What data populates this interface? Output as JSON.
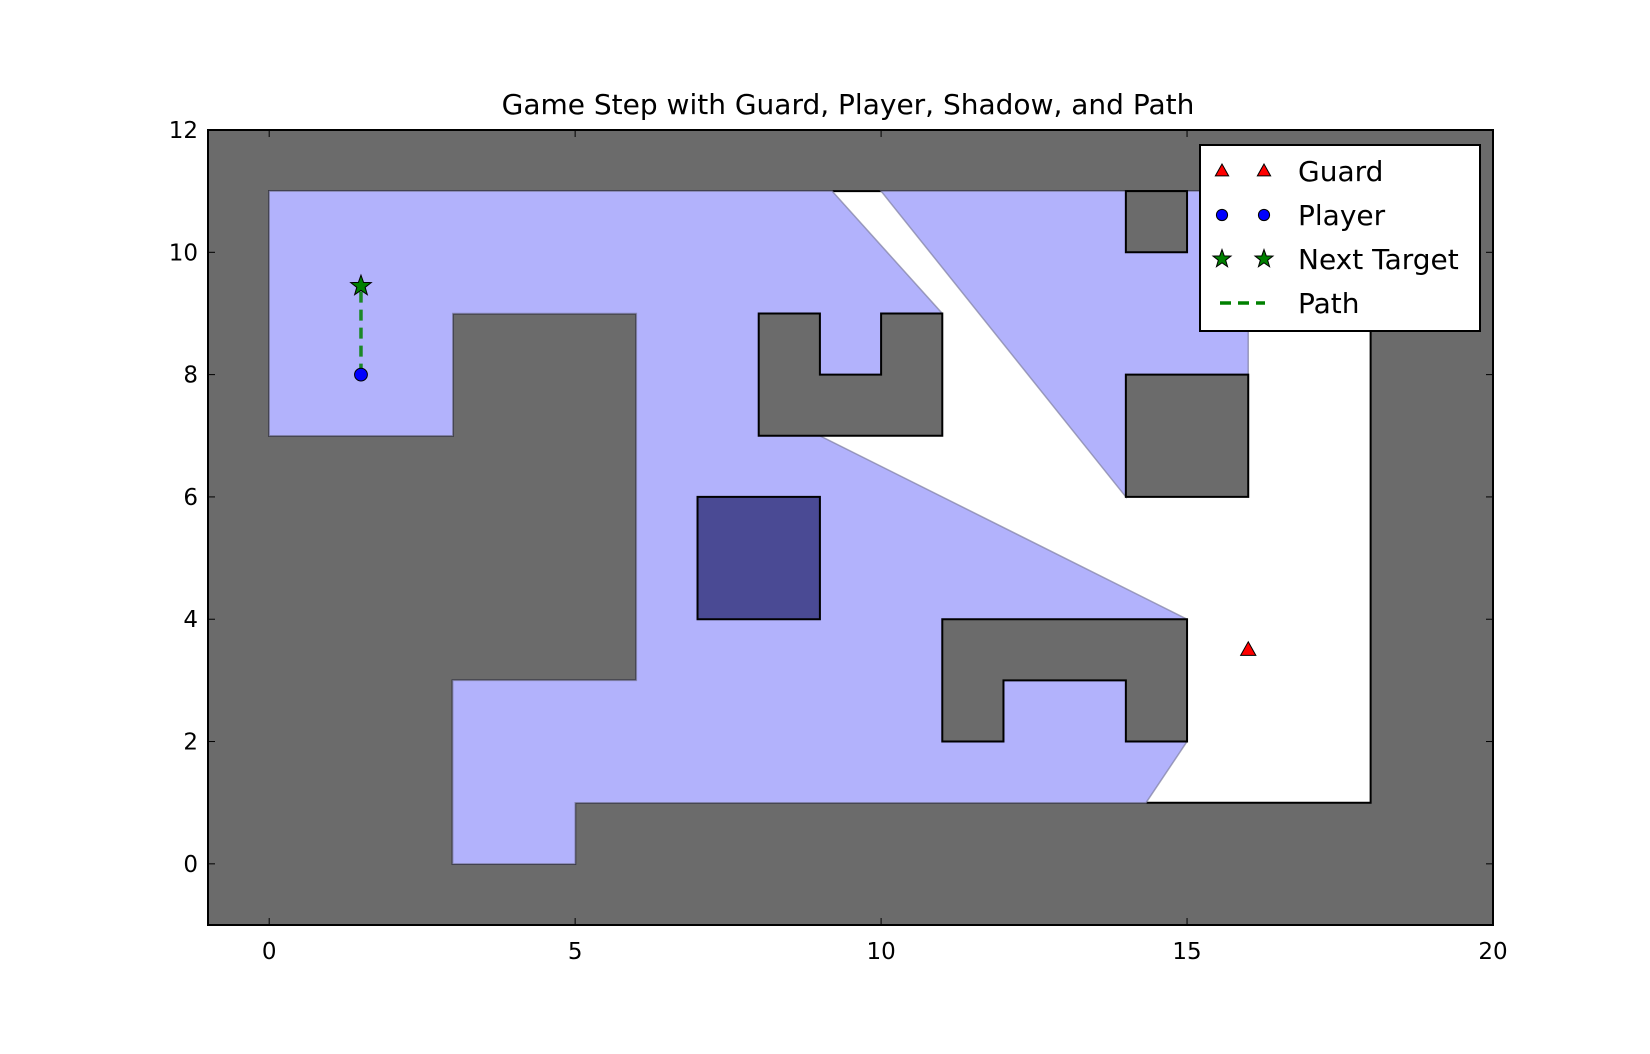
{
  "chart_data": {
    "type": "scatter",
    "title": "Game Step with Guard, Player, Shadow, and Path",
    "xlabel": "",
    "ylabel": "",
    "xlim": [
      -1,
      20
    ],
    "ylim": [
      -1,
      12
    ],
    "xticks": [
      0,
      5,
      10,
      15,
      20
    ],
    "yticks": [
      0,
      2,
      4,
      6,
      8,
      10,
      12
    ],
    "grid": false,
    "legend_position": "top-right",
    "colors": {
      "wall": "#6b6b6b",
      "shadow": "#b2b2fc",
      "highlight_box": "#4a4a94",
      "guard": "#ff0000",
      "player": "#0000ff",
      "target": "#008000",
      "path": "#008000",
      "floor": "#ffffff"
    },
    "obstacles": [
      {
        "name": "outer-wall",
        "points": [
          [
            -1,
            -1
          ],
          [
            20,
            -1
          ],
          [
            20,
            12
          ],
          [
            -1,
            12
          ]
        ]
      },
      {
        "name": "top-notch",
        "points": [
          [
            14,
            11
          ],
          [
            15,
            11
          ],
          [
            15,
            10
          ],
          [
            14,
            10
          ]
        ]
      },
      {
        "name": "c-shape-top",
        "points": [
          [
            8,
            9
          ],
          [
            9,
            9
          ],
          [
            9,
            8
          ],
          [
            10,
            8
          ],
          [
            10,
            9
          ],
          [
            11,
            9
          ],
          [
            11,
            7
          ],
          [
            8,
            7
          ]
        ]
      },
      {
        "name": "block-middle-right",
        "points": [
          [
            14,
            8
          ],
          [
            16,
            8
          ],
          [
            16,
            6
          ],
          [
            14,
            6
          ]
        ]
      },
      {
        "name": "u-shape-bottom",
        "points": [
          [
            11,
            4
          ],
          [
            15,
            4
          ],
          [
            15,
            2
          ],
          [
            14,
            2
          ],
          [
            14,
            3
          ],
          [
            12,
            3
          ],
          [
            12,
            2
          ],
          [
            11,
            2
          ]
        ]
      }
    ],
    "walkable_area": [
      [
        0,
        11
      ],
      [
        18,
        11
      ],
      [
        18,
        1
      ],
      [
        5,
        1
      ],
      [
        5,
        0
      ],
      [
        3,
        0
      ],
      [
        3,
        3
      ],
      [
        6,
        3
      ],
      [
        6,
        9
      ],
      [
        3,
        9
      ],
      [
        3,
        7
      ],
      [
        0,
        7
      ]
    ],
    "shadow_regions": [
      {
        "name": "shadow-left",
        "points": [
          [
            0,
            11
          ],
          [
            9.2,
            11
          ],
          [
            11,
            9
          ],
          [
            11,
            7
          ],
          [
            9,
            7
          ],
          [
            15,
            4
          ],
          [
            15,
            2
          ],
          [
            14.33,
            1
          ],
          [
            5,
            1
          ],
          [
            5,
            0
          ],
          [
            3,
            0
          ],
          [
            3,
            3
          ],
          [
            6,
            3
          ],
          [
            6,
            9
          ],
          [
            3,
            9
          ],
          [
            3,
            7
          ],
          [
            0,
            7
          ]
        ]
      },
      {
        "name": "shadow-right",
        "points": [
          [
            10,
            11
          ],
          [
            14,
            11
          ],
          [
            14,
            10
          ],
          [
            15,
            10
          ],
          [
            15,
            11
          ],
          [
            16,
            11
          ],
          [
            16,
            8
          ],
          [
            14,
            8
          ],
          [
            14,
            6
          ]
        ]
      }
    ],
    "highlight_box": {
      "points": [
        [
          7,
          6
        ],
        [
          9,
          6
        ],
        [
          9,
          4
        ],
        [
          7,
          4
        ]
      ]
    },
    "series": [
      {
        "name": "Guard",
        "marker": "triangle",
        "points": [
          {
            "x": 16,
            "y": 3.5
          }
        ]
      },
      {
        "name": "Player",
        "marker": "circle",
        "points": [
          {
            "x": 1.5,
            "y": 8
          }
        ]
      },
      {
        "name": "Next Target",
        "marker": "star",
        "points": [
          {
            "x": 1.5,
            "y": 9.45
          }
        ]
      },
      {
        "name": "Path",
        "marker": "dashed-line",
        "points": [
          {
            "x": 1.5,
            "y": 8
          },
          {
            "x": 1.5,
            "y": 9.45
          }
        ]
      }
    ]
  }
}
